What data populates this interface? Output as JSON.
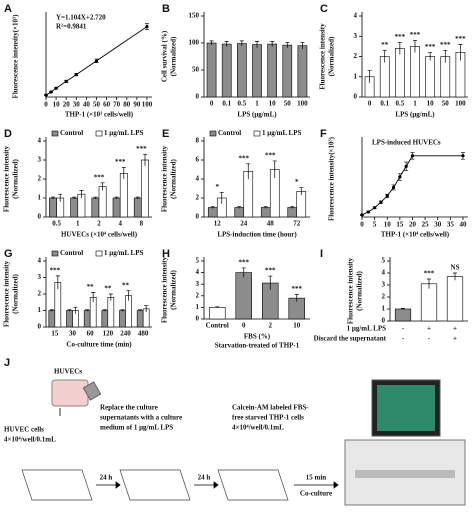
{
  "chart_data": [
    {
      "panel": "A",
      "type": "line",
      "ylabel": [
        "Fluorescence intensity(×10³)"
      ],
      "xlabel": "THP-1 (×10³ cells/well)",
      "note": [
        "Y=1.104X+2.720",
        "R²=0.9841"
      ],
      "x": [
        0,
        5,
        10,
        20,
        30,
        50,
        100
      ],
      "values": [
        3,
        8,
        14,
        25,
        36,
        58,
        113
      ],
      "errors": [
        1,
        1,
        1,
        2,
        2,
        3,
        5
      ],
      "color": "#000000",
      "xlim": [
        0,
        105
      ],
      "xticks": [
        0,
        10,
        20,
        30,
        40,
        50,
        60,
        70,
        80,
        90,
        100
      ],
      "ylim": [
        0,
        130
      ]
    },
    {
      "panel": "B",
      "type": "bar",
      "ylabel": [
        "Cell survival (%)",
        "(Normalized)"
      ],
      "xlabel": "LPS (μg/mL)",
      "categories": [
        "0",
        "0.1",
        "0.5",
        "1",
        "10",
        "50",
        "100"
      ],
      "values": [
        100,
        98,
        99,
        97,
        98,
        96,
        95
      ],
      "errors": [
        4,
        5,
        5,
        6,
        5,
        5,
        6
      ],
      "color": "#8c8c8c",
      "ylim": [
        0,
        150
      ],
      "yticks": [
        0,
        50,
        100,
        150
      ]
    },
    {
      "panel": "C",
      "type": "bar",
      "ylabel": [
        "Fluorescence intensity",
        "(Normalized)"
      ],
      "xlabel": "LPS (μg/mL)",
      "categories": [
        "0",
        "0.1",
        "0.5",
        "1",
        "10",
        "50",
        "100"
      ],
      "values": [
        1.0,
        2.0,
        2.4,
        2.5,
        2.0,
        2.0,
        2.2
      ],
      "errors": [
        0.3,
        0.3,
        0.3,
        0.3,
        0.2,
        0.3,
        0.4
      ],
      "color": "#ffffff",
      "annotations": [
        null,
        "**",
        "***",
        "***",
        "***",
        "***",
        "***"
      ],
      "ylim": [
        0,
        4
      ],
      "yticks": [
        0,
        1,
        2,
        3,
        4
      ]
    },
    {
      "panel": "D",
      "type": "bar",
      "ylabel": [
        "Fluorescence intensity",
        "(Normalized)"
      ],
      "xlabel": "HUVECs (×10⁴ cells/well)",
      "categories": [
        "0.5",
        "1",
        "2",
        "4",
        "8"
      ],
      "series": [
        {
          "name": "Control",
          "color": "#8c8c8c",
          "values": [
            1,
            1,
            1,
            1,
            1
          ],
          "errors": [
            0.05,
            0.05,
            0.05,
            0.05,
            0.05
          ]
        },
        {
          "name": "1 μg/mL LPS",
          "color": "#ffffff",
          "values": [
            1.0,
            1.2,
            1.6,
            2.3,
            3.0
          ],
          "errors": [
            0.2,
            0.2,
            0.2,
            0.3,
            0.3
          ]
        }
      ],
      "annotations": [
        null,
        null,
        "***",
        "***",
        "***"
      ],
      "ylim": [
        0,
        4
      ],
      "yticks": [
        0,
        1,
        2,
        3,
        4
      ]
    },
    {
      "panel": "E",
      "type": "bar",
      "ylabel": [
        "Fluorescence intensity",
        "(Normalized)"
      ],
      "xlabel": "LPS-induction time (hour)",
      "categories": [
        "12",
        "24",
        "48",
        "72"
      ],
      "series": [
        {
          "name": "Control",
          "color": "#8c8c8c",
          "values": [
            1,
            1,
            1,
            1
          ],
          "errors": [
            0.1,
            0.1,
            0.1,
            0.1
          ]
        },
        {
          "name": "1 μg/mL LPS",
          "color": "#ffffff",
          "values": [
            2.0,
            4.8,
            5.0,
            2.7
          ],
          "errors": [
            0.6,
            0.8,
            0.9,
            0.4
          ]
        }
      ],
      "annotations": [
        "*",
        "***",
        "***",
        "*"
      ],
      "ylim": [
        0,
        8
      ],
      "yticks": [
        0,
        2,
        4,
        6,
        8
      ]
    },
    {
      "panel": "F",
      "type": "line",
      "ylabel": [
        "Fluorescence intensity(×10³)"
      ],
      "xlabel": "THP-1 (×10⁴ cells/well)",
      "note": [
        "LPS-induced HUVECs"
      ],
      "x": [
        0,
        2.5,
        5,
        7.5,
        10,
        12.5,
        15,
        17.5,
        20,
        40
      ],
      "values": [
        5,
        12,
        22,
        35,
        50,
        70,
        95,
        120,
        145,
        145
      ],
      "errors": [
        1,
        2,
        2,
        3,
        4,
        6,
        8,
        10,
        8,
        8
      ],
      "color": "#000000",
      "xlim": [
        0,
        42
      ],
      "xticks": [
        0,
        5,
        10,
        15,
        20,
        25,
        30,
        35,
        40
      ],
      "ylim": [
        0,
        180
      ]
    },
    {
      "panel": "G",
      "type": "bar",
      "ylabel": [
        "Fluorescence intensity",
        "(Normalized)"
      ],
      "xlabel": "Co-culture time (min)",
      "categories": [
        "15",
        "30",
        "60",
        "120",
        "240",
        "480"
      ],
      "series": [
        {
          "name": "Control",
          "color": "#8c8c8c",
          "values": [
            1,
            1,
            1,
            1,
            1,
            1
          ],
          "errors": [
            0.05,
            0.05,
            0.05,
            0.05,
            0.05,
            0.05
          ]
        },
        {
          "name": "1 μg/mL LPS",
          "color": "#ffffff",
          "values": [
            2.7,
            1.0,
            1.8,
            1.8,
            1.9,
            1.1
          ],
          "errors": [
            0.4,
            0.2,
            0.3,
            0.2,
            0.3,
            0.2
          ]
        }
      ],
      "annotations": [
        "***",
        null,
        "**",
        "**",
        "**",
        null
      ],
      "ylim": [
        0,
        4
      ],
      "yticks": [
        0,
        1,
        2,
        3,
        4
      ]
    },
    {
      "panel": "H",
      "type": "bar",
      "ylabel": [
        "Fluorescence intensity",
        "(Normalized)"
      ],
      "xlabel": [
        "FBS (%)",
        "Starvation-treated of THP-1"
      ],
      "categories": [
        "Control",
        "0",
        "2",
        "10"
      ],
      "values": [
        1,
        4.0,
        3.1,
        1.8
      ],
      "errors": [
        0.05,
        0.4,
        0.6,
        0.3
      ],
      "colors": [
        "#ffffff",
        "#8c8c8c",
        "#8c8c8c",
        "#8c8c8c"
      ],
      "annotations": [
        null,
        "***",
        "***",
        "***"
      ],
      "ylim": [
        0,
        5
      ],
      "yticks": [
        0,
        1,
        2,
        3,
        4,
        5
      ]
    },
    {
      "panel": "I",
      "type": "bar",
      "ylabel": [
        "Fluorescence intensity",
        "(Normalized)"
      ],
      "categories": [
        null,
        null,
        null
      ],
      "x_rows": [
        {
          "label": "1 μg/mL LPS",
          "marks": [
            "-",
            "+",
            "+"
          ]
        },
        {
          "label": "Discard the supernatant",
          "marks": [
            "-",
            "-",
            "+"
          ]
        }
      ],
      "values": [
        1,
        3.1,
        3.7
      ],
      "errors": [
        0.05,
        0.4,
        0.3
      ],
      "colors": [
        "#8c8c8c",
        "#ffffff",
        "#ffffff"
      ],
      "annotations": [
        null,
        "***",
        "NS"
      ],
      "ylim": [
        0,
        5
      ],
      "yticks": [
        0,
        1,
        2,
        3,
        4,
        5
      ]
    }
  ],
  "diagram": {
    "panel": "J",
    "flask": "HUVECs",
    "step1": [
      "HUVEC cells",
      "4×10⁴/well/0.1mL"
    ],
    "step2": [
      "Replace the culture",
      "supernatants with a culture",
      "medium of 1 μg/mL LPS"
    ],
    "step3": [
      "Calcein-AM labeled FBS-",
      "free starved THP-1 cells",
      "4×10⁴/well/0.1mL"
    ],
    "wait1": "24 h",
    "wait2": "24 h",
    "wait3": [
      "15 min",
      "Co-culture"
    ]
  }
}
